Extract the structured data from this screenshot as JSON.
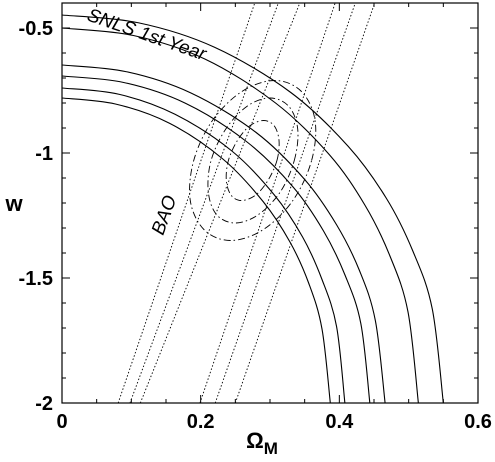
{
  "chart_data": {
    "type": "contour",
    "xlabel": "Ω",
    "xlabel_subscript": "M",
    "ylabel": "w",
    "annotations": [
      "SNLS 1st Year",
      "BAO"
    ],
    "xlim": [
      0,
      0.6
    ],
    "ylim": [
      -2,
      -0.4
    ],
    "xticks": [
      0,
      0.2,
      0.4,
      0.6
    ],
    "yticks": [
      -0.5,
      -1,
      -1.5,
      -2
    ],
    "xminorticks": [
      0.05,
      0.1,
      0.15,
      0.25,
      0.3,
      0.35,
      0.45,
      0.5,
      0.55
    ],
    "yminorticks": [
      -1.9,
      -1.8,
      -1.7,
      -1.6,
      -1.4,
      -1.3,
      -1.2,
      -1.1,
      -0.9,
      -0.8,
      -0.7,
      -0.6
    ],
    "series": [
      {
        "style": "solid",
        "color": "#000000",
        "x": [
          0,
          0.11,
          0.22,
          0.33,
          0.413,
          0.468,
          0.506,
          0.534,
          0.55
        ],
        "y": [
          -0.448,
          -0.479,
          -0.577,
          -0.758,
          -0.974,
          -1.182,
          -1.392,
          -1.623,
          -2
        ]
      },
      {
        "style": "solid",
        "color": "#000000",
        "x": [
          0,
          0.103,
          0.206,
          0.308,
          0.386,
          0.437,
          0.473,
          0.499,
          0.514
        ],
        "y": [
          -0.5,
          -0.53,
          -0.624,
          -0.8,
          -1.008,
          -1.209,
          -1.412,
          -1.635,
          -2
        ]
      },
      {
        "style": "solid",
        "color": "#000000",
        "x": [
          0,
          0.093,
          0.186,
          0.28,
          0.35,
          0.396,
          0.429,
          0.452,
          0.466
        ],
        "y": [
          -0.648,
          -0.675,
          -0.76,
          -0.918,
          -1.106,
          -1.287,
          -1.47,
          -1.671,
          -2
        ]
      },
      {
        "style": "solid",
        "color": "#000000",
        "x": [
          0,
          0.089,
          0.178,
          0.266,
          0.333,
          0.377,
          0.408,
          0.431,
          0.444
        ],
        "y": [
          -0.692,
          -0.718,
          -0.801,
          -0.954,
          -1.135,
          -1.311,
          -1.487,
          -1.682,
          -2
        ]
      },
      {
        "style": "solid",
        "color": "#000000",
        "x": [
          0,
          0.082,
          0.163,
          0.245,
          0.306,
          0.347,
          0.375,
          0.396,
          0.408
        ],
        "y": [
          -0.74,
          -0.765,
          -0.845,
          -0.992,
          -1.167,
          -1.336,
          -1.506,
          -1.694,
          -2
        ]
      },
      {
        "style": "solid",
        "color": "#000000",
        "x": [
          0,
          0.077,
          0.155,
          0.232,
          0.29,
          0.329,
          0.356,
          0.375,
          0.387
        ],
        "y": [
          -0.78,
          -0.804,
          -0.881,
          -1.024,
          -1.194,
          -1.357,
          -1.522,
          -1.704,
          -2
        ]
      },
      {
        "style": "dotted",
        "color": "#000000",
        "x": [
          0.081,
          0.278
        ],
        "y": [
          -2,
          -0.4
        ]
      },
      {
        "style": "dotted",
        "color": "#000000",
        "x": [
          0.098,
          0.312
        ],
        "y": [
          -2,
          -0.4
        ]
      },
      {
        "style": "dotted",
        "color": "#000000",
        "x": [
          0.113,
          0.343
        ],
        "y": [
          -2,
          -0.4
        ]
      },
      {
        "style": "dotted",
        "color": "#000000",
        "x": [
          0.199,
          0.394
        ],
        "y": [
          -2,
          -0.4
        ]
      },
      {
        "style": "dotted",
        "color": "#000000",
        "x": [
          0.221,
          0.423
        ],
        "y": [
          -2,
          -0.4
        ]
      },
      {
        "style": "dotted",
        "color": "#000000",
        "x": [
          0.25,
          0.451
        ],
        "y": [
          -2,
          -0.4
        ]
      },
      {
        "style": "dashdot",
        "color": "#000000",
        "closed": true,
        "x": [
          0.31,
          0.313,
          0.306,
          0.291,
          0.271,
          0.253,
          0.24,
          0.237,
          0.244,
          0.259,
          0.279,
          0.297
        ],
        "y": [
          -1.03,
          -0.95,
          -0.891,
          -0.87,
          -0.891,
          -0.95,
          -1.03,
          -1.11,
          -1.169,
          -1.19,
          -1.169,
          -1.11
        ]
      },
      {
        "style": "dashdot",
        "color": "#000000",
        "closed": true,
        "x": [
          0.335,
          0.34,
          0.327,
          0.3,
          0.267,
          0.236,
          0.215,
          0.211,
          0.223,
          0.25,
          0.283,
          0.315
        ],
        "y": [
          -1.03,
          -0.905,
          -0.813,
          -0.78,
          -0.813,
          -0.905,
          -1.03,
          -1.155,
          -1.247,
          -1.28,
          -1.247,
          -1.155
        ]
      },
      {
        "style": "dashdot",
        "color": "#000000",
        "closed": true,
        "x": [
          0.36,
          0.365,
          0.345,
          0.307,
          0.26,
          0.217,
          0.19,
          0.185,
          0.205,
          0.243,
          0.29,
          0.333
        ],
        "y": [
          -1.03,
          -0.87,
          -0.753,
          -0.71,
          -0.753,
          -0.87,
          -1.03,
          -1.19,
          -1.307,
          -1.35,
          -1.307,
          -1.19
        ]
      }
    ]
  }
}
